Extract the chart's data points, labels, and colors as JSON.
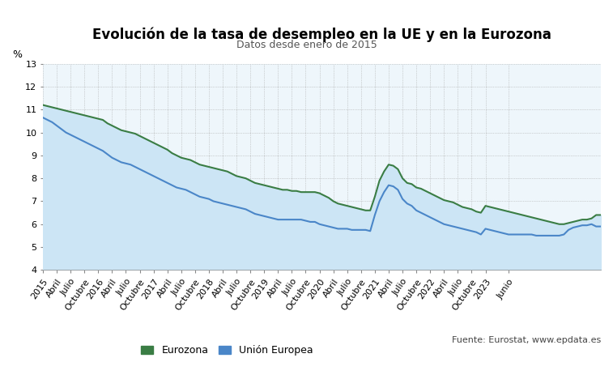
{
  "title": "Evolución de la tasa de desempleo en la UE y en la Eurozona",
  "subtitle": "Datos desde enero de 2015",
  "ylabel": "%",
  "source_text": "Fuente: Eurostat, www.epdata.es",
  "ylim": [
    4,
    13
  ],
  "yticks": [
    4,
    5,
    6,
    7,
    8,
    9,
    10,
    11,
    12,
    13
  ],
  "color_eurozona": "#3a7d44",
  "color_ue": "#4a86c8",
  "fill_color_top": "#d6eaf8",
  "fill_color_bottom": "#e8f4fb",
  "background_color": "#eef6fb",
  "eurozona": [
    11.2,
    11.15,
    11.1,
    11.05,
    11.0,
    10.95,
    10.9,
    10.85,
    10.8,
    10.75,
    10.7,
    10.65,
    10.6,
    10.55,
    10.4,
    10.3,
    10.2,
    10.1,
    10.05,
    10.0,
    9.95,
    9.85,
    9.75,
    9.65,
    9.55,
    9.45,
    9.35,
    9.25,
    9.1,
    9.0,
    8.9,
    8.85,
    8.8,
    8.7,
    8.6,
    8.55,
    8.5,
    8.45,
    8.4,
    8.35,
    8.3,
    8.2,
    8.1,
    8.05,
    8.0,
    7.9,
    7.8,
    7.75,
    7.7,
    7.65,
    7.6,
    7.55,
    7.5,
    7.5,
    7.45,
    7.45,
    7.4,
    7.4,
    7.4,
    7.4,
    7.35,
    7.25,
    7.15,
    7.0,
    6.9,
    6.85,
    6.8,
    6.75,
    6.7,
    6.65,
    6.6,
    6.6,
    7.2,
    7.9,
    8.3,
    8.6,
    8.55,
    8.4,
    8.0,
    7.8,
    7.75,
    7.6,
    7.55,
    7.45,
    7.35,
    7.25,
    7.15,
    7.05,
    7.0,
    6.95,
    6.85,
    6.75,
    6.7,
    6.65,
    6.55,
    6.5,
    6.8,
    6.75,
    6.7,
    6.65,
    6.6,
    6.55,
    6.5,
    6.45,
    6.4,
    6.35,
    6.3,
    6.25,
    6.2,
    6.15,
    6.1,
    6.05,
    6.0,
    6.0,
    6.05,
    6.1,
    6.15,
    6.2,
    6.2,
    6.25,
    6.4,
    6.4
  ],
  "ue": [
    10.65,
    10.55,
    10.45,
    10.3,
    10.15,
    10.0,
    9.9,
    9.8,
    9.7,
    9.6,
    9.5,
    9.4,
    9.3,
    9.2,
    9.05,
    8.9,
    8.8,
    8.7,
    8.65,
    8.6,
    8.5,
    8.4,
    8.3,
    8.2,
    8.1,
    8.0,
    7.9,
    7.8,
    7.7,
    7.6,
    7.55,
    7.5,
    7.4,
    7.3,
    7.2,
    7.15,
    7.1,
    7.0,
    6.95,
    6.9,
    6.85,
    6.8,
    6.75,
    6.7,
    6.65,
    6.55,
    6.45,
    6.4,
    6.35,
    6.3,
    6.25,
    6.2,
    6.2,
    6.2,
    6.2,
    6.2,
    6.2,
    6.15,
    6.1,
    6.1,
    6.0,
    5.95,
    5.9,
    5.85,
    5.8,
    5.8,
    5.8,
    5.75,
    5.75,
    5.75,
    5.75,
    5.7,
    6.4,
    7.0,
    7.4,
    7.7,
    7.65,
    7.5,
    7.1,
    6.9,
    6.8,
    6.6,
    6.5,
    6.4,
    6.3,
    6.2,
    6.1,
    6.0,
    5.95,
    5.9,
    5.85,
    5.8,
    5.75,
    5.7,
    5.65,
    5.55,
    5.8,
    5.75,
    5.7,
    5.65,
    5.6,
    5.55,
    5.55,
    5.55,
    5.55,
    5.55,
    5.55,
    5.5,
    5.5,
    5.5,
    5.5,
    5.5,
    5.5,
    5.55,
    5.75,
    5.85,
    5.9,
    5.95,
    5.95,
    6.0,
    5.9,
    5.9
  ],
  "tick_labels": [
    "2015",
    "Abril",
    "Julio",
    "Octubre",
    "2016",
    "Abril",
    "Julio",
    "Octubre",
    "2017",
    "Abril",
    "Julio",
    "Octubre",
    "2018",
    "Abril",
    "Julio",
    "Octubre",
    "2019",
    "Abril",
    "Julio",
    "Octubre",
    "2020",
    "Abril",
    "Julio",
    "Octubre",
    "2021",
    "Abril",
    "Julio",
    "Octubre",
    "2022",
    "Abril",
    "Julio",
    "Octubre",
    "2023",
    "Junio"
  ],
  "tick_positions": [
    0,
    3,
    6,
    9,
    12,
    15,
    18,
    21,
    24,
    27,
    30,
    33,
    36,
    39,
    42,
    45,
    48,
    51,
    54,
    57,
    60,
    63,
    66,
    69,
    72,
    75,
    78,
    81,
    84,
    87,
    90,
    93,
    96,
    101
  ]
}
